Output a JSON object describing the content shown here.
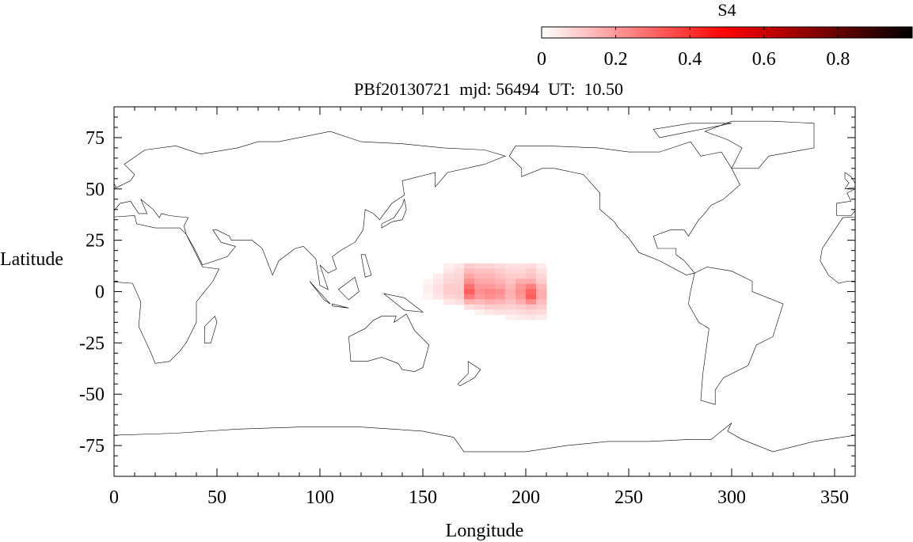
{
  "chart_data": {
    "type": "heatmap",
    "title": "PBf20130721  mjd: 56494  UT:  10.50",
    "xlabel": "Longitude",
    "ylabel": "Latitude",
    "xlim": [
      0,
      360
    ],
    "ylim": [
      -90,
      90
    ],
    "xticks": [
      "0",
      "50",
      "100",
      "150",
      "200",
      "250",
      "300",
      "350"
    ],
    "yticks": [
      "75",
      "50",
      "25",
      "0",
      "-25",
      "-50",
      "-75"
    ],
    "grid": false,
    "background": "world coastline map",
    "colorbar": {
      "label": "S4",
      "range": [
        0,
        1
      ],
      "ticks": [
        "0",
        "0.2",
        "0.4",
        "0.6",
        "0.8"
      ],
      "colors": [
        "#ffffff",
        "#ff0000",
        "#000000"
      ],
      "placement": "top-right"
    },
    "lon": [
      152.5,
      157.5,
      162.5,
      167.5,
      172.5,
      177.5,
      182.5,
      187.5,
      192.5,
      197.5,
      202.5,
      207.5
    ],
    "lat": [
      12.5,
      10,
      7.5,
      5,
      2.5,
      0,
      -2.5,
      -5,
      -7.5,
      -10,
      -12.5
    ],
    "values": [
      [
        0,
        0,
        0.03,
        0.05,
        0.1,
        0.08,
        0.08,
        0.07,
        0.06,
        0.06,
        0.07,
        0.04
      ],
      [
        0,
        0,
        0.05,
        0.07,
        0.14,
        0.12,
        0.12,
        0.1,
        0.08,
        0.08,
        0.1,
        0.06
      ],
      [
        0,
        0.04,
        0.07,
        0.08,
        0.18,
        0.15,
        0.15,
        0.12,
        0.1,
        0.1,
        0.12,
        0.08
      ],
      [
        0.02,
        0.05,
        0.08,
        0.09,
        0.22,
        0.17,
        0.17,
        0.15,
        0.12,
        0.16,
        0.16,
        0.1
      ],
      [
        0.03,
        0.06,
        0.1,
        0.1,
        0.28,
        0.2,
        0.2,
        0.18,
        0.14,
        0.2,
        0.25,
        0.14
      ],
      [
        0.03,
        0.06,
        0.1,
        0.1,
        0.32,
        0.22,
        0.24,
        0.22,
        0.16,
        0.22,
        0.3,
        0.16
      ],
      [
        0.02,
        0.05,
        0.08,
        0.09,
        0.26,
        0.2,
        0.22,
        0.2,
        0.15,
        0.2,
        0.32,
        0.16
      ],
      [
        0,
        0,
        0.05,
        0.06,
        0.15,
        0.14,
        0.16,
        0.15,
        0.12,
        0.16,
        0.22,
        0.13
      ],
      [
        0,
        0,
        0,
        0,
        0.06,
        0.08,
        0.1,
        0.1,
        0.09,
        0.1,
        0.12,
        0.1
      ],
      [
        0,
        0,
        0,
        0,
        0,
        0.03,
        0.05,
        0.06,
        0.06,
        0.07,
        0.08,
        0.07
      ],
      [
        0,
        0,
        0,
        0,
        0,
        0,
        0,
        0,
        0.03,
        0.04,
        0.05,
        0.04
      ]
    ]
  }
}
